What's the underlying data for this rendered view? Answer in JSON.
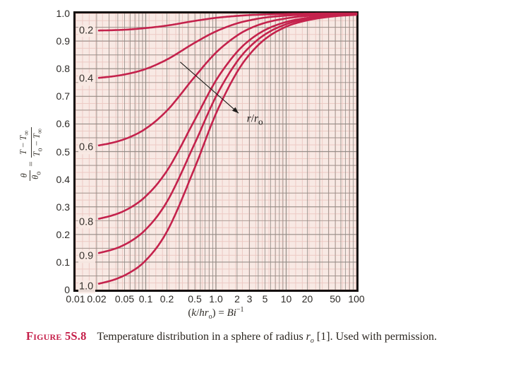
{
  "colors": {
    "curve": "#c4224c",
    "plot_bg": "#f8e9e4",
    "fine_grid": "#ecc9c3",
    "major_grid": "#8f8983",
    "border": "#15100f",
    "text": "#2d2a27",
    "caption_label": "#c5204a",
    "arrow": "#1e1c1a"
  },
  "axes": {
    "y_title": {
      "frac1_num": "<i>θ</i>",
      "frac1_den": "<i>θ</i><sub>o</sub>",
      "equals": "=",
      "frac2_num": "<i>T</i> − <i>T</i><sub>∞</sub>",
      "frac2_den": "<i>T</i><sub>o</sub> − <i>T</i><sub>∞</sub>"
    },
    "x_title_html": "(<i>k</i>/<i>hr</i><sub>o</sub>) = <i>Bi</i><sup>−1</sup>"
  },
  "caption": {
    "label": "Figure 5S.8",
    "text_html": "Temperature distribution in a sphere of radius <i>r</i><sub><i>o</i></sub> [1]. Used with permission."
  },
  "chart_data": {
    "type": "line",
    "title": "",
    "xlabel": "(k/hr_o) = Bi^-1",
    "ylabel": "θ/θ_o = (T − T_∞)/(T_o − T_∞)",
    "x_scale": "log",
    "xlim": [
      0.01,
      100
    ],
    "ylim": [
      0,
      1.0
    ],
    "grid": {
      "horizontal_step": 0.05,
      "vertical": "log-decade-digits",
      "fine_graph_paper": true
    },
    "x_ticks": [
      0.01,
      0.02,
      0.05,
      0.1,
      0.2,
      0.5,
      1.0,
      2,
      3,
      5,
      10,
      20,
      50,
      100
    ],
    "x_tick_labels": [
      "0.01",
      "0.02",
      "0.05",
      "0.1",
      "0.2",
      "0.5",
      "1.0",
      "2",
      "3",
      "5",
      "10",
      "20",
      "50",
      "100"
    ],
    "y_ticks": [
      0,
      0.1,
      0.2,
      0.3,
      0.4,
      0.5,
      0.6,
      0.7,
      0.8,
      0.9,
      1.0
    ],
    "y_tick_labels": [
      "0",
      "0.1",
      "0.2",
      "0.3",
      "0.4",
      "0.5",
      "0.6",
      "0.7",
      "0.8",
      "0.9",
      "1.0"
    ],
    "curve_parameter": "r/r_o",
    "curve_draw_start_x": 0.0215,
    "x": [
      0.01,
      0.02,
      0.05,
      0.1,
      0.2,
      0.5,
      1,
      2,
      3,
      5,
      10,
      20,
      50,
      100
    ],
    "series": [
      {
        "name": "r/ro = 0.2",
        "label": "0.2",
        "values": [
          0.937,
          0.938,
          0.941,
          0.947,
          0.956,
          0.973,
          0.984,
          0.991,
          0.994,
          0.996,
          0.998,
          0.999,
          1.0,
          1.0
        ]
      },
      {
        "name": "r/ro = 0.4",
        "label": "0.4",
        "values": [
          0.761,
          0.766,
          0.779,
          0.799,
          0.833,
          0.894,
          0.935,
          0.964,
          0.975,
          0.985,
          0.992,
          0.996,
          0.998,
          1.0
        ]
      },
      {
        "name": "r/ro = 0.6",
        "label": "0.6",
        "values": [
          0.513,
          0.521,
          0.545,
          0.583,
          0.648,
          0.771,
          0.858,
          0.92,
          0.945,
          0.966,
          0.982,
          0.991,
          0.996,
          0.999
        ]
      },
      {
        "name": "r/ro = 0.8",
        "label": "0.8",
        "values": [
          0.244,
          0.255,
          0.286,
          0.338,
          0.43,
          0.615,
          0.757,
          0.861,
          0.903,
          0.94,
          0.969,
          0.984,
          0.994,
          0.998
        ]
      },
      {
        "name": "r/ro = 0.9",
        "label": "0.9",
        "values": [
          0.12,
          0.131,
          0.163,
          0.218,
          0.318,
          0.53,
          0.699,
          0.826,
          0.878,
          0.924,
          0.961,
          0.98,
          0.992,
          0.998
        ]
      },
      {
        "name": "r/ro = 1.0",
        "label": "1.0",
        "values": [
          0.01,
          0.02,
          0.052,
          0.106,
          0.21,
          0.442,
          0.637,
          0.788,
          0.851,
          0.907,
          0.952,
          0.975,
          0.99,
          0.995
        ]
      }
    ],
    "annotation": {
      "label_html": "<i>r</i>/<i>r</i><sub>o</sub>",
      "arrow_from": [
        0.31,
        0.824
      ],
      "arrow_to": [
        2.1,
        0.639
      ],
      "label_pos": [
        2.75,
        0.615
      ]
    },
    "legend": "none"
  }
}
